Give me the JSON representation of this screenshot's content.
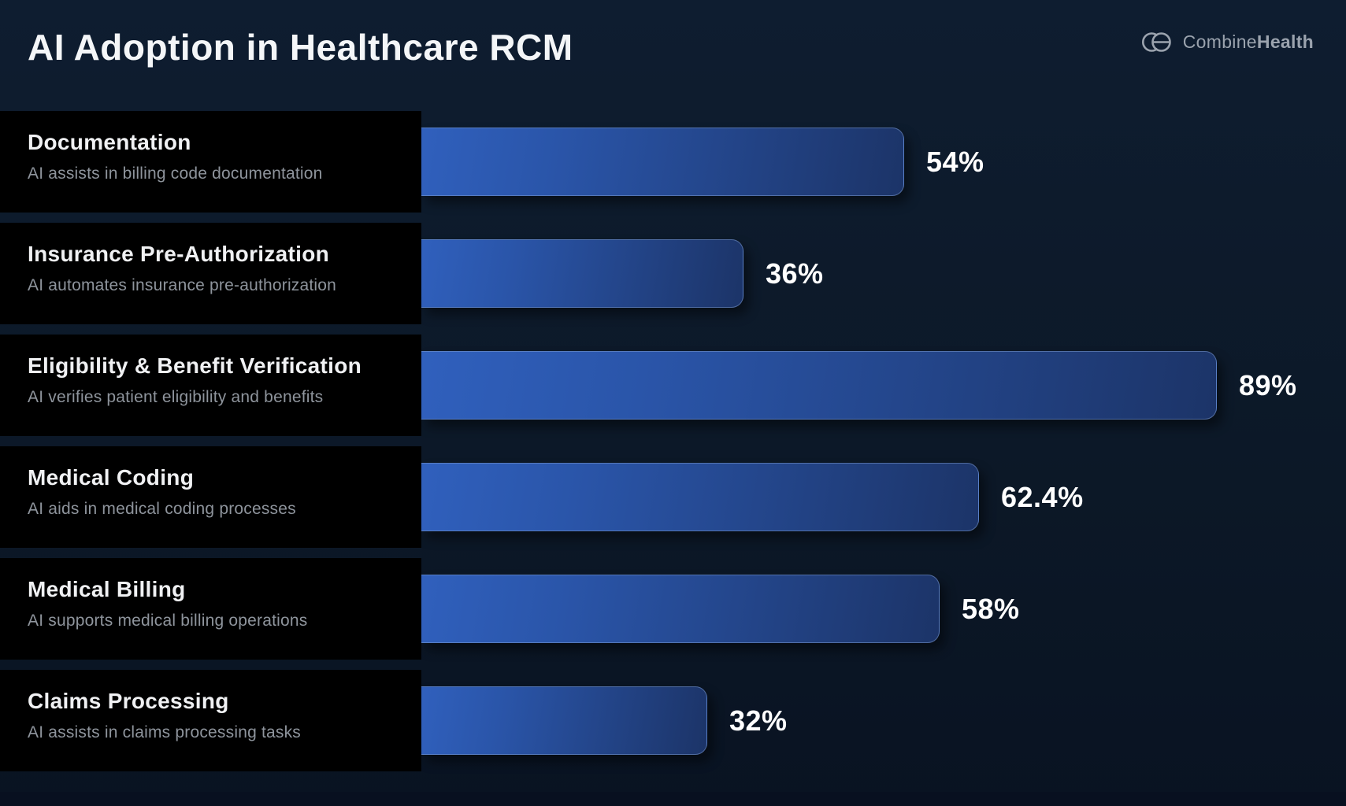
{
  "header": {
    "title": "AI Adoption in Healthcare RCM",
    "brand": {
      "regular": "Combine",
      "bold": "Health",
      "icon": "combinehealth-logo-icon",
      "color": "#9ba3ae"
    }
  },
  "chart_data": {
    "type": "bar",
    "orientation": "horizontal",
    "title": "AI Adoption in Healthcare RCM",
    "categories": [
      "Documentation",
      "Insurance Pre-Authorization",
      "Eligibility & Benefit Verification",
      "Medical Coding",
      "Medical Billing",
      "Claims Processing"
    ],
    "descriptions": [
      "AI assists in billing code documentation",
      "AI automates insurance pre-authorization",
      "AI verifies patient eligibility and benefits",
      "AI aids in medical coding processes",
      "AI supports medical billing operations",
      "AI assists in claims processing tasks"
    ],
    "values": [
      54,
      36,
      89,
      62.4,
      58,
      32
    ],
    "value_labels": [
      "54%",
      "36%",
      "89%",
      "62.4%",
      "58%",
      "32%"
    ],
    "value_suffix": "%",
    "max_value": 89,
    "xlim": [
      0,
      89
    ],
    "grid": false,
    "legend": false,
    "colors": {
      "bar_gradient_start": "#3060bd",
      "bar_gradient_end": "#1c3468",
      "label_panel": "#000000",
      "background": "#0c1827",
      "category_text": "#f0f1f3",
      "description_text": "#8e949c",
      "value_text": "#ffffff"
    }
  }
}
